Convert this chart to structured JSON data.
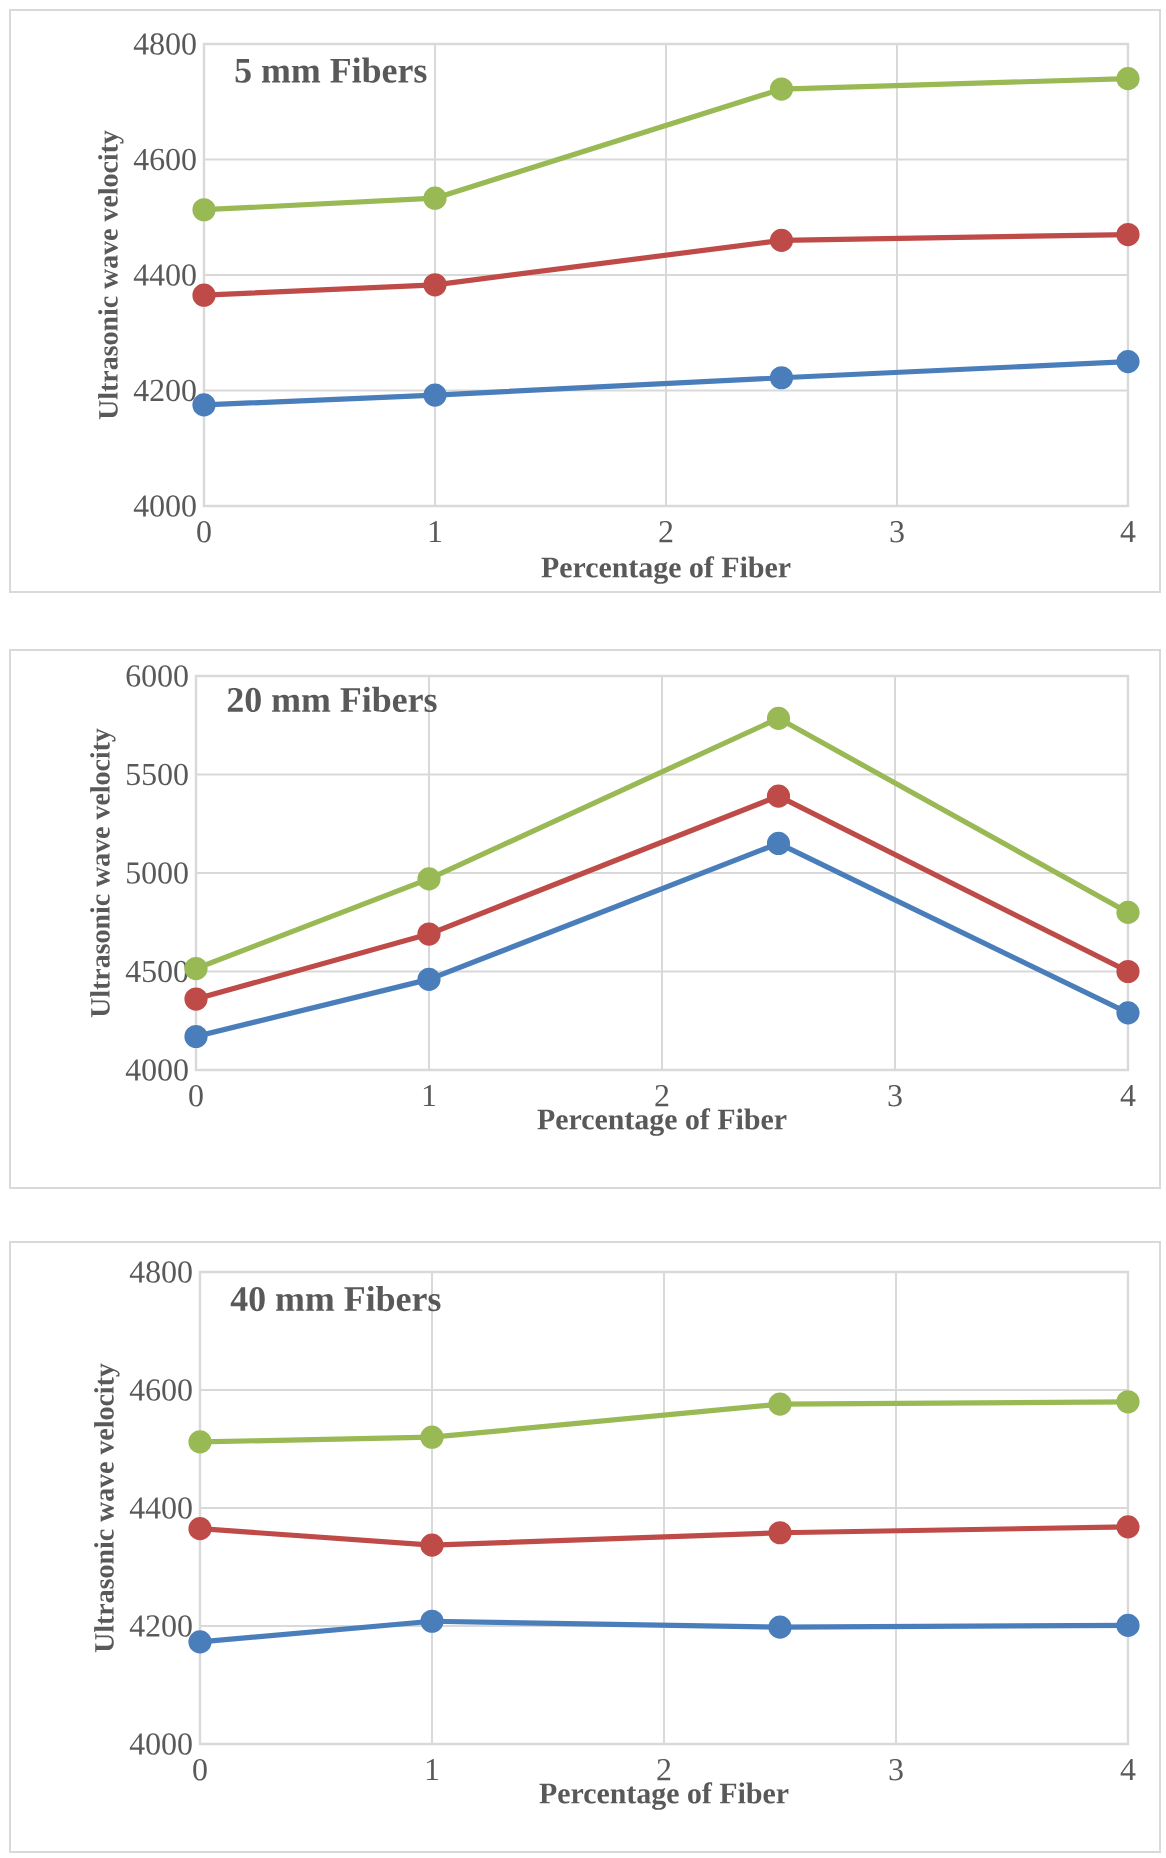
{
  "chart_data": [
    {
      "type": "line",
      "title": "5 mm Fibers",
      "xlabel": "Percentage of Fiber",
      "ylabel": "Ultrasonic wave velocity",
      "x": [
        0,
        1,
        2.5,
        4
      ],
      "xlim": [
        0,
        4
      ],
      "ylim": [
        4000,
        4800
      ],
      "xticks": [
        0,
        1,
        2,
        3,
        4
      ],
      "yticks": [
        4000,
        4200,
        4400,
        4600,
        4800
      ],
      "grid": true,
      "marker": "circle",
      "line_style": "solid",
      "series": [
        {
          "color": "#4a7ebb",
          "values": [
            4175,
            4192,
            4222,
            4250
          ]
        },
        {
          "color": "#be4b48",
          "values": [
            4365,
            4383,
            4460,
            4470
          ]
        },
        {
          "color": "#98b954",
          "values": [
            4513,
            4533,
            4722,
            4740
          ]
        }
      ]
    },
    {
      "type": "line",
      "title": "20 mm Fibers",
      "xlabel": "Percentage of Fiber",
      "ylabel": "Ultrasonic wave velocity",
      "x": [
        0,
        1,
        2.5,
        4
      ],
      "xlim": [
        0,
        4
      ],
      "ylim": [
        4000,
        6000
      ],
      "xticks": [
        0,
        1,
        2,
        3,
        4
      ],
      "yticks": [
        4000,
        4500,
        5000,
        5500,
        6000
      ],
      "grid": true,
      "marker": "circle",
      "line_style": "solid",
      "series": [
        {
          "color": "#4a7ebb",
          "values": [
            4170,
            4460,
            5150,
            4290
          ]
        },
        {
          "color": "#be4b48",
          "values": [
            4360,
            4690,
            5390,
            4500
          ]
        },
        {
          "color": "#98b954",
          "values": [
            4515,
            4970,
            5785,
            4800
          ]
        }
      ]
    },
    {
      "type": "line",
      "title": "40 mm Fibers",
      "xlabel": "Percentage of Fiber",
      "ylabel": "Ultrasonic wave velocity",
      "x": [
        0,
        1,
        2.5,
        4
      ],
      "xlim": [
        0,
        4
      ],
      "ylim": [
        4000,
        4800
      ],
      "xticks": [
        0,
        1,
        2,
        3,
        4
      ],
      "yticks": [
        4000,
        4200,
        4400,
        4600,
        4800
      ],
      "grid": true,
      "marker": "circle",
      "line_style": "solid",
      "series": [
        {
          "color": "#4a7ebb",
          "values": [
            4173,
            4208,
            4198,
            4201
          ]
        },
        {
          "color": "#be4b48",
          "values": [
            4365,
            4337,
            4358,
            4368
          ]
        },
        {
          "color": "#98b954",
          "values": [
            4512,
            4520,
            4576,
            4580
          ]
        }
      ]
    }
  ]
}
